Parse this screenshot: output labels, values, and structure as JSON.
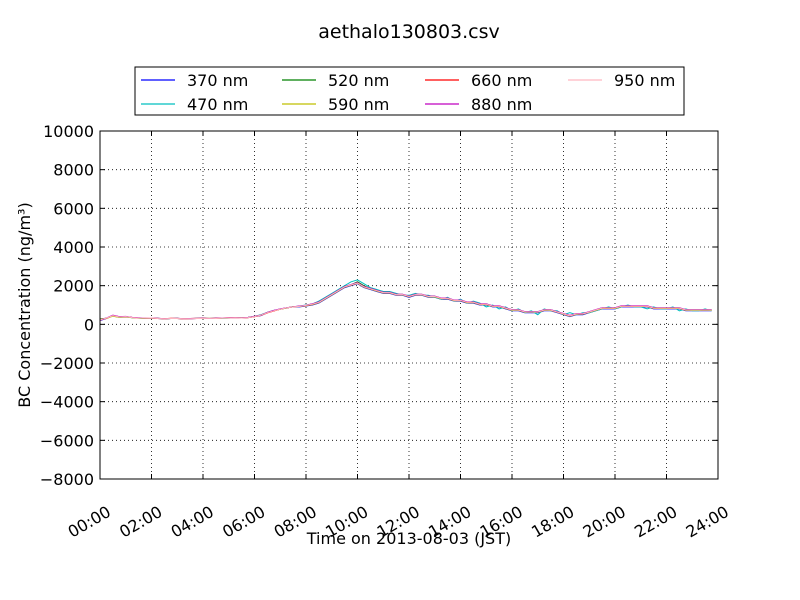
{
  "chart_data": {
    "type": "line",
    "title": "aethalo130803.csv",
    "xlabel": "Time on 2013-08-03 (JST)",
    "ylabel": "BC Concentration (ng/m³)",
    "ylim": [
      -8000,
      10000
    ],
    "xlim": [
      "00:00",
      "24:00"
    ],
    "y_ticks": [
      -8000,
      -6000,
      -4000,
      -2000,
      0,
      2000,
      4000,
      6000,
      8000,
      10000
    ],
    "x_ticks": [
      "00:00",
      "02:00",
      "04:00",
      "06:00",
      "08:00",
      "10:00",
      "12:00",
      "14:00",
      "16:00",
      "18:00",
      "20:00",
      "22:00",
      "24:00"
    ],
    "grid": true,
    "legend_position": "top",
    "series": [
      {
        "name": "370 nm",
        "color": "#0000ff"
      },
      {
        "name": "470 nm",
        "color": "#00bfbf"
      },
      {
        "name": "520 nm",
        "color": "#008000"
      },
      {
        "name": "590 nm",
        "color": "#bfbf00"
      },
      {
        "name": "660 nm",
        "color": "#ff0000"
      },
      {
        "name": "880 nm",
        "color": "#bf00bf"
      },
      {
        "name": "950 nm",
        "color": "#ffb6c1"
      }
    ],
    "x_hours": [
      0,
      0.25,
      0.5,
      0.75,
      1,
      1.25,
      1.5,
      1.75,
      2,
      2.25,
      2.5,
      2.75,
      3,
      3.25,
      3.5,
      3.75,
      4,
      4.25,
      4.5,
      4.75,
      5,
      5.25,
      5.5,
      5.75,
      6,
      6.25,
      6.5,
      6.75,
      7,
      7.25,
      7.5,
      7.75,
      8,
      8.25,
      8.5,
      8.75,
      9,
      9.25,
      9.5,
      9.75,
      10,
      10.25,
      10.5,
      10.75,
      11,
      11.25,
      11.5,
      11.75,
      12,
      12.25,
      12.5,
      12.75,
      13,
      13.25,
      13.5,
      13.75,
      14,
      14.25,
      14.5,
      14.75,
      15,
      15.25,
      15.5,
      15.75,
      16,
      16.25,
      16.5,
      16.75,
      17,
      17.25,
      17.5,
      17.75,
      18,
      18.25,
      18.5,
      18.75,
      19,
      19.25,
      19.5,
      19.75,
      20,
      20.25,
      20.5,
      20.75,
      21,
      21.25,
      21.5,
      21.75,
      22,
      22.25,
      22.5,
      22.75,
      23,
      23.25,
      23.5,
      23.75
    ],
    "values_by_series": {
      "370 nm": [
        200,
        300,
        450,
        380,
        400,
        350,
        330,
        320,
        330,
        300,
        280,
        300,
        300,
        280,
        290,
        300,
        310,
        300,
        310,
        320,
        330,
        340,
        330,
        350,
        400,
        450,
        600,
        700,
        800,
        850,
        900,
        900,
        950,
        1000,
        1100,
        1300,
        1500,
        1700,
        1900,
        2000,
        2100,
        1900,
        1800,
        1700,
        1600,
        1600,
        1500,
        1500,
        1400,
        1500,
        1500,
        1400,
        1400,
        1300,
        1300,
        1200,
        1200,
        1100,
        1100,
        1000,
        1000,
        900,
        900,
        800,
        700,
        700,
        600,
        600,
        600,
        700,
        700,
        600,
        500,
        400,
        500,
        500,
        600,
        700,
        800,
        800,
        800,
        900,
        900,
        900,
        900,
        900,
        800,
        800,
        800,
        800,
        800,
        700,
        700,
        700,
        700,
        700
      ],
      "470 nm": [
        250,
        320,
        430,
        360,
        380,
        340,
        330,
        310,
        320,
        300,
        290,
        300,
        300,
        290,
        290,
        310,
        300,
        310,
        300,
        320,
        330,
        350,
        340,
        360,
        420,
        500,
        620,
        720,
        780,
        860,
        900,
        950,
        1000,
        1050,
        1200,
        1400,
        1600,
        1800,
        2000,
        2200,
        2300,
        2100,
        1900,
        1800,
        1700,
        1700,
        1600,
        1500,
        1500,
        1600,
        1500,
        1500,
        1400,
        1300,
        1400,
        1200,
        1300,
        1100,
        1200,
        1100,
        900,
        1000,
        800,
        900,
        700,
        800,
        600,
        700,
        500,
        800,
        700,
        700,
        500,
        600,
        500,
        600,
        600,
        700,
        800,
        900,
        800,
        900,
        1000,
        900,
        900,
        800,
        900,
        800,
        800,
        900,
        700,
        800,
        700,
        700,
        800,
        700
      ],
      "520 nm": [
        280,
        310,
        440,
        370,
        390,
        350,
        320,
        300,
        330,
        310,
        280,
        300,
        310,
        280,
        300,
        300,
        310,
        300,
        310,
        330,
        320,
        340,
        330,
        360,
        410,
        480,
        610,
        710,
        790,
        840,
        920,
        930,
        980,
        1050,
        1150,
        1350,
        1550,
        1750,
        1950,
        2050,
        2200,
        2000,
        1850,
        1750,
        1650,
        1650,
        1550,
        1550,
        1450,
        1550,
        1550,
        1450,
        1450,
        1350,
        1350,
        1250,
        1250,
        1150,
        1150,
        1050,
        1050,
        950,
        950,
        850,
        750,
        750,
        650,
        650,
        650,
        750,
        750,
        650,
        550,
        450,
        550,
        550,
        650,
        750,
        850,
        850,
        850,
        950,
        950,
        950,
        950,
        950,
        850,
        850,
        850,
        850,
        850,
        750,
        750,
        750,
        750,
        750
      ],
      "590 nm": [
        260,
        300,
        420,
        360,
        380,
        340,
        320,
        310,
        320,
        300,
        290,
        300,
        300,
        290,
        300,
        310,
        300,
        310,
        300,
        320,
        330,
        340,
        340,
        350,
        400,
        470,
        600,
        700,
        780,
        850,
        900,
        920,
        960,
        1020,
        1120,
        1320,
        1520,
        1720,
        1920,
        2020,
        2120,
        1920,
        1820,
        1720,
        1620,
        1620,
        1520,
        1520,
        1420,
        1520,
        1520,
        1420,
        1420,
        1320,
        1320,
        1220,
        1220,
        1120,
        1120,
        1020,
        1020,
        920,
        920,
        820,
        720,
        720,
        620,
        620,
        620,
        720,
        720,
        620,
        520,
        420,
        520,
        520,
        620,
        720,
        820,
        820,
        820,
        920,
        920,
        920,
        920,
        920,
        820,
        820,
        820,
        820,
        820,
        720,
        720,
        720,
        720,
        720
      ],
      "660 nm": [
        220,
        310,
        460,
        390,
        400,
        360,
        330,
        320,
        330,
        300,
        290,
        310,
        300,
        280,
        290,
        300,
        310,
        300,
        310,
        330,
        340,
        340,
        330,
        350,
        390,
        460,
        590,
        690,
        790,
        850,
        900,
        940,
        970,
        1040,
        1140,
        1340,
        1540,
        1740,
        1940,
        2040,
        2140,
        1940,
        1840,
        1740,
        1640,
        1640,
        1540,
        1540,
        1440,
        1540,
        1540,
        1440,
        1440,
        1340,
        1340,
        1240,
        1240,
        1140,
        1140,
        1040,
        1040,
        940,
        940,
        840,
        740,
        740,
        640,
        640,
        640,
        740,
        740,
        640,
        540,
        440,
        540,
        540,
        640,
        740,
        840,
        840,
        840,
        940,
        940,
        940,
        940,
        940,
        840,
        840,
        840,
        840,
        840,
        740,
        740,
        740,
        740,
        740
      ],
      "880 nm": [
        240,
        330,
        470,
        400,
        410,
        360,
        340,
        320,
        330,
        310,
        290,
        300,
        310,
        290,
        300,
        310,
        310,
        300,
        310,
        330,
        340,
        350,
        340,
        360,
        420,
        480,
        620,
        720,
        800,
        860,
        910,
        950,
        990,
        1060,
        1160,
        1360,
        1560,
        1760,
        1960,
        2060,
        2160,
        1960,
        1860,
        1760,
        1660,
        1660,
        1560,
        1560,
        1460,
        1560,
        1560,
        1460,
        1460,
        1360,
        1360,
        1260,
        1260,
        1160,
        1160,
        1060,
        1060,
        960,
        960,
        860,
        760,
        760,
        660,
        660,
        660,
        760,
        760,
        660,
        560,
        460,
        560,
        560,
        660,
        760,
        860,
        860,
        860,
        960,
        960,
        960,
        960,
        960,
        860,
        860,
        860,
        860,
        860,
        760,
        760,
        760,
        760,
        760
      ],
      "950 nm": [
        230,
        320,
        450,
        380,
        400,
        350,
        330,
        320,
        330,
        300,
        290,
        300,
        300,
        290,
        290,
        300,
        300,
        310,
        300,
        320,
        330,
        340,
        330,
        350,
        400,
        470,
        600,
        700,
        790,
        850,
        900,
        930,
        980,
        1040,
        1140,
        1340,
        1540,
        1740,
        1940,
        2040,
        2140,
        1940,
        1840,
        1740,
        1640,
        1640,
        1540,
        1540,
        1440,
        1540,
        1540,
        1440,
        1440,
        1340,
        1340,
        1240,
        1240,
        1140,
        1140,
        1040,
        1040,
        940,
        940,
        840,
        740,
        740,
        640,
        640,
        640,
        740,
        740,
        640,
        540,
        440,
        540,
        540,
        640,
        740,
        840,
        840,
        840,
        940,
        940,
        940,
        940,
        940,
        840,
        840,
        840,
        840,
        840,
        740,
        740,
        740,
        740,
        740
      ]
    }
  }
}
